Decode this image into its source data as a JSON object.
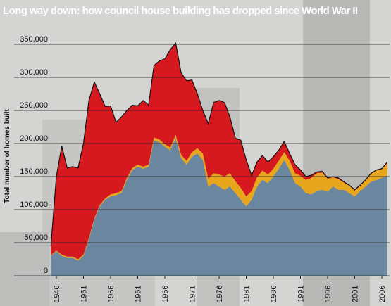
{
  "chart_data": {
    "type": "stacked_area",
    "title": "Long way down: how council house building has dropped since World War II",
    "ylabel": "Total number of homes built",
    "x": [
      1945,
      1946,
      1947,
      1948,
      1949,
      1950,
      1951,
      1952,
      1953,
      1954,
      1955,
      1956,
      1957,
      1958,
      1959,
      1960,
      1961,
      1962,
      1963,
      1964,
      1965,
      1966,
      1967,
      1968,
      1969,
      1970,
      1971,
      1972,
      1973,
      1974,
      1975,
      1976,
      1977,
      1978,
      1979,
      1980,
      1981,
      1982,
      1983,
      1984,
      1985,
      1986,
      1987,
      1988,
      1989,
      1990,
      1991,
      1992,
      1993,
      1994,
      1995,
      1996,
      1997,
      1998,
      1999,
      2000,
      2001,
      2002,
      2003,
      2004,
      2005,
      2006,
      2007
    ],
    "series": [
      {
        "color": "#6b879f",
        "values": [
          30000,
          37000,
          30000,
          27000,
          27000,
          23000,
          30000,
          55000,
          85000,
          105000,
          115000,
          120000,
          122000,
          125000,
          145000,
          160000,
          165000,
          162000,
          165000,
          205000,
          202000,
          195000,
          190000,
          208000,
          178000,
          168000,
          180000,
          185000,
          175000,
          135000,
          140000,
          135000,
          130000,
          135000,
          125000,
          115000,
          105000,
          115000,
          135000,
          145000,
          140000,
          150000,
          162000,
          175000,
          160000,
          140000,
          135000,
          125000,
          123000,
          128000,
          130000,
          127000,
          135000,
          130000,
          130000,
          125000,
          120000,
          128000,
          135000,
          142000,
          145000,
          148000,
          152000
        ]
      },
      {
        "color": "#e8a61c",
        "values": [
          1000,
          1000,
          2000,
          2000,
          2000,
          2000,
          2000,
          2000,
          2000,
          2000,
          2000,
          3000,
          3000,
          3000,
          3000,
          3000,
          3000,
          3000,
          3000,
          4000,
          4000,
          4000,
          4000,
          5000,
          5000,
          6000,
          7000,
          8000,
          10000,
          12000,
          15000,
          18000,
          20000,
          20000,
          18000,
          18000,
          15000,
          13000,
          14000,
          14000,
          13000,
          12000,
          12000,
          12000,
          14000,
          15000,
          16000,
          20000,
          25000,
          27000,
          26000,
          20000,
          14000,
          16000,
          11000,
          11000,
          9000,
          8000,
          9000,
          12000,
          14000,
          13000,
          18000
        ]
      },
      {
        "color": "#d6191f",
        "values": [
          14000,
          112000,
          164000,
          134000,
          136000,
          138000,
          168000,
          208000,
          206000,
          168000,
          139000,
          134000,
          107000,
          112000,
          102000,
          95000,
          89000,
          100000,
          90000,
          109000,
          119000,
          129000,
          148000,
          139000,
          124000,
          121000,
          109000,
          82000,
          65000,
          83000,
          107000,
          112000,
          112000,
          85000,
          65000,
          72000,
          55000,
          24000,
          23000,
          23000,
          19000,
          18000,
          16000,
          16000,
          11000,
          13000,
          9000,
          5000,
          4000,
          2000,
          2000,
          1000,
          1000,
          2000,
          1000,
          1000,
          1000,
          1000,
          1000,
          1000,
          1000,
          1000,
          2000
        ]
      }
    ],
    "xlim": [
      1945,
      2007
    ],
    "xticks": [
      1946,
      1951,
      1956,
      1961,
      1966,
      1971,
      1976,
      1981,
      1986,
      1991,
      1996,
      2001,
      2006
    ],
    "ylim": [
      0,
      350000
    ],
    "yticks": [
      0,
      {
        "value": 50000,
        "label": "50,000"
      },
      {
        "value": 100000,
        "label": "100,000"
      },
      {
        "value": 150000,
        "label": "150,000"
      },
      {
        "value": 200000,
        "label": "200,000"
      },
      {
        "value": 250000,
        "label": "250,000"
      },
      {
        "value": 300000,
        "label": "300,000"
      },
      {
        "value": 350000,
        "label": "350,000"
      }
    ],
    "grid": true
  }
}
